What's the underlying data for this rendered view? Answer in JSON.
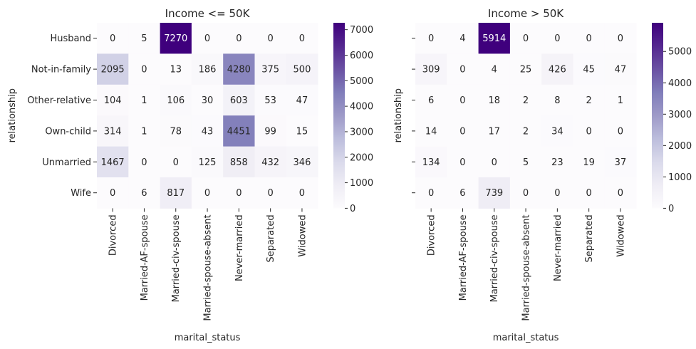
{
  "chart_data": [
    {
      "type": "heatmap",
      "title": "Income <= 50K",
      "xlabel": "marital_status",
      "ylabel": "relationship",
      "x_categories": [
        "Divorced",
        "Married-AF-spouse",
        "Married-civ-spouse",
        "Married-spouse-absent",
        "Never-married",
        "Separated",
        "Widowed"
      ],
      "y_categories": [
        "Husband",
        "Not-in-family",
        "Other-relative",
        "Own-child",
        "Unmarried",
        "Wife"
      ],
      "values": [
        [
          0,
          5,
          7270,
          0,
          0,
          0,
          0
        ],
        [
          2095,
          0,
          13,
          186,
          4280,
          375,
          500
        ],
        [
          104,
          1,
          106,
          30,
          603,
          53,
          47
        ],
        [
          314,
          1,
          78,
          43,
          4451,
          99,
          15
        ],
        [
          1467,
          0,
          0,
          125,
          858,
          432,
          346
        ],
        [
          0,
          6,
          817,
          0,
          0,
          0,
          0
        ]
      ],
      "colormap": "Purples",
      "vmin": 0,
      "vmax": 7270,
      "colorbar_ticks": [
        0,
        1000,
        2000,
        3000,
        4000,
        5000,
        6000,
        7000
      ],
      "show_y_tick_labels": true
    },
    {
      "type": "heatmap",
      "title": "Income > 50K",
      "xlabel": "marital_status",
      "ylabel": "relationship",
      "x_categories": [
        "Divorced",
        "Married-AF-spouse",
        "Married-civ-spouse",
        "Married-spouse-absent",
        "Never-married",
        "Separated",
        "Widowed"
      ],
      "y_categories": [
        "Husband",
        "Not-in-family",
        "Other-relative",
        "Own-child",
        "Unmarried",
        "Wife"
      ],
      "values": [
        [
          0,
          4,
          5914,
          0,
          0,
          0,
          0
        ],
        [
          309,
          0,
          4,
          25,
          426,
          45,
          47
        ],
        [
          6,
          0,
          18,
          2,
          8,
          2,
          1
        ],
        [
          14,
          0,
          17,
          2,
          34,
          0,
          0
        ],
        [
          134,
          0,
          0,
          5,
          23,
          19,
          37
        ],
        [
          0,
          6,
          739,
          0,
          0,
          0,
          0
        ]
      ],
      "colormap": "Purples",
      "vmin": 0,
      "vmax": 5914,
      "colorbar_ticks": [
        0,
        1000,
        2000,
        3000,
        4000,
        5000
      ],
      "show_y_tick_labels": false
    }
  ]
}
